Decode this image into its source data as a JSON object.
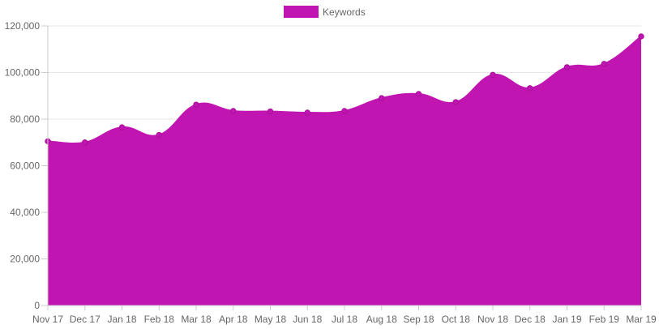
{
  "chart_data": {
    "type": "area",
    "title": "",
    "xlabel": "",
    "ylabel": "",
    "legend": {
      "position": "top-center"
    },
    "grid": true,
    "categories": [
      "Nov 17",
      "Dec 17",
      "Jan 18",
      "Feb 18",
      "Mar 18",
      "Apr 18",
      "May 18",
      "Jun 18",
      "Jul 18",
      "Aug 18",
      "Sep 18",
      "Oct 18",
      "Nov 18",
      "Dec 18",
      "Jan 19",
      "Feb 19",
      "Mar 19"
    ],
    "series": [
      {
        "name": "Keywords",
        "color": "#c015b0",
        "values": [
          70500,
          70000,
          76500,
          73200,
          86200,
          83500,
          83300,
          82800,
          83500,
          89000,
          90800,
          87300,
          99000,
          93300,
          102300,
          103700,
          115500
        ]
      }
    ],
    "ylim": [
      0,
      120000
    ],
    "yticks": [
      0,
      20000,
      40000,
      60000,
      80000,
      100000,
      120000
    ],
    "ytick_labels": [
      "0",
      "20,000",
      "40,000",
      "60,000",
      "80,000",
      "100,000",
      "120,000"
    ]
  }
}
